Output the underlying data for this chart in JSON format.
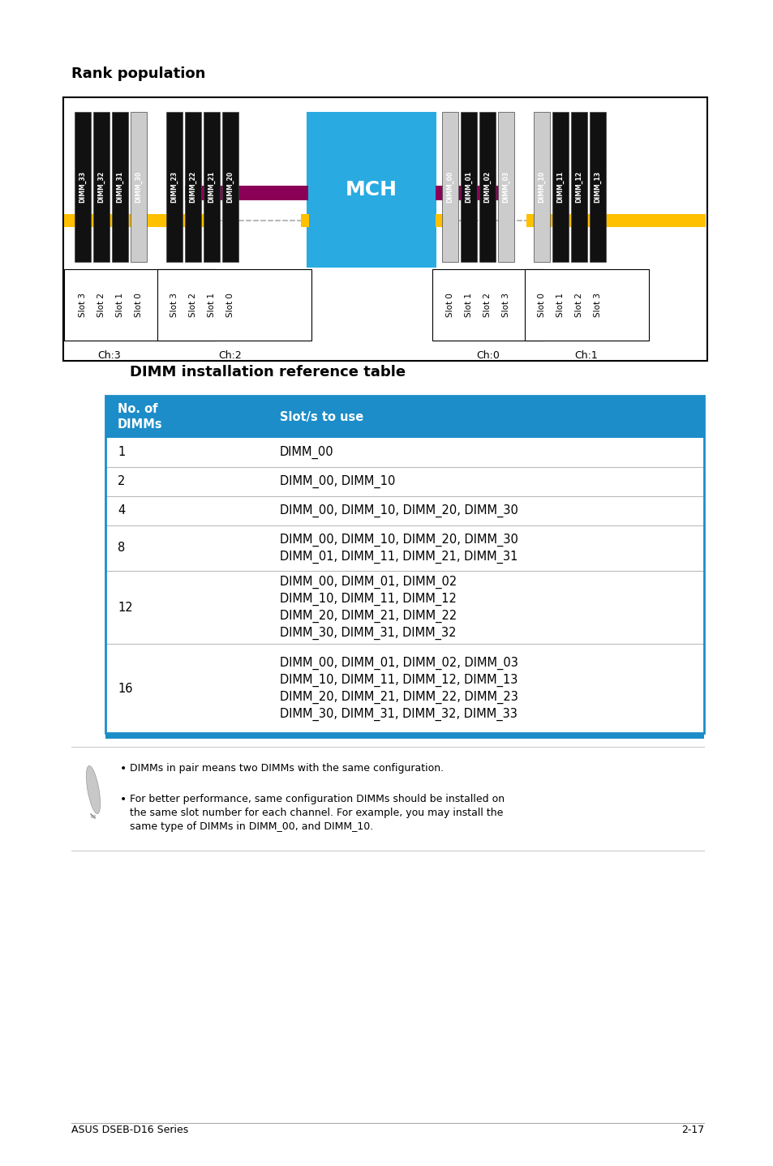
{
  "title_rank": "Rank population",
  "title_dimm": "DIMM installation reference table",
  "page_footer_left": "ASUS DSEB-D16 Series",
  "page_footer_right": "2-17",
  "mch_label": "MCH",
  "mch_color": "#29ABE2",
  "magenta_color": "#8B0057",
  "gold_color": "#FFC000",
  "table_header_color": "#1C8DC8",
  "table_header_text_color": "#FFFFFF",
  "table_border_color": "#1C8DC8",
  "table_row_line_color": "#BBBBBB",
  "table_col1_header": "No. of\nDIMMs",
  "table_col2_header": "Slot/s to use",
  "table_rows": [
    {
      "num": "1",
      "slots": "DIMM_00"
    },
    {
      "num": "2",
      "slots": "DIMM_00, DIMM_10"
    },
    {
      "num": "4",
      "slots": "DIMM_00, DIMM_10, DIMM_20, DIMM_30"
    },
    {
      "num": "8",
      "slots": "DIMM_00, DIMM_10, DIMM_20, DIMM_30\nDIMM_01, DIMM_11, DIMM_21, DIMM_31"
    },
    {
      "num": "12",
      "slots": "DIMM_00, DIMM_01, DIMM_02\nDIMM_10, DIMM_11, DIMM_12\nDIMM_20, DIMM_21, DIMM_22\nDIMM_30, DIMM_31, DIMM_32"
    },
    {
      "num": "16",
      "slots": "DIMM_00, DIMM_01, DIMM_02, DIMM_03\nDIMM_10, DIMM_11, DIMM_12, DIMM_13\nDIMM_20, DIMM_21, DIMM_22, DIMM_23\nDIMM_30, DIMM_31, DIMM_32, DIMM_33"
    }
  ],
  "note1": "DIMMs in pair means two DIMMs with the same configuration.",
  "note2": "For better performance, same configuration DIMMs should be installed on\nthe same slot number for each channel. For example, you may install the\nsame type of DIMMs in DIMM_00, and DIMM_10."
}
